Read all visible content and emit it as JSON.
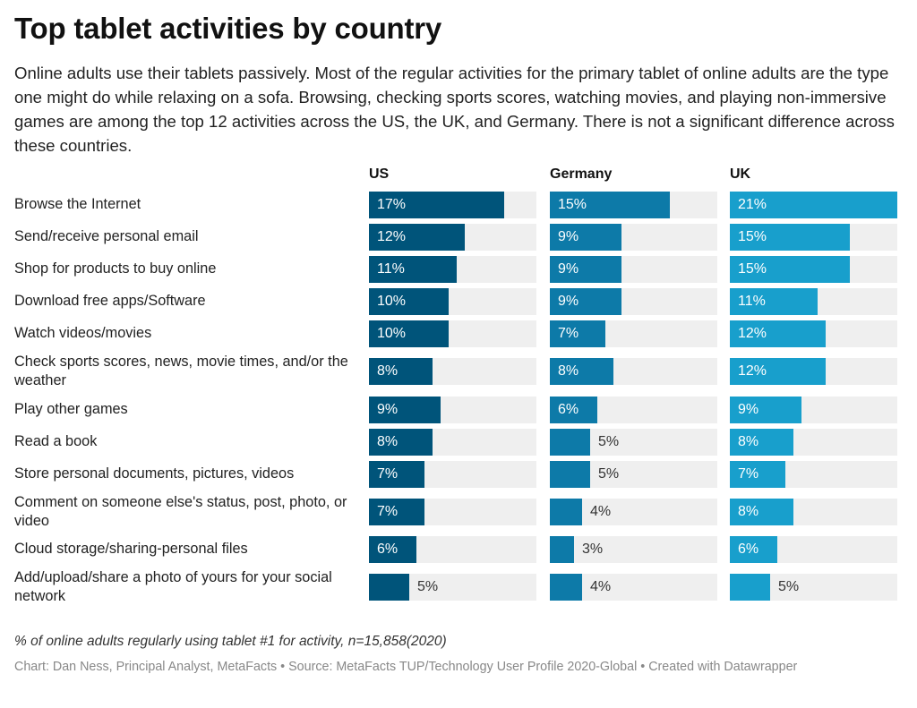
{
  "title": "Top tablet activities by country",
  "description": "Online adults use their tablets passively. Most of the regular activities for the primary tablet of online adults are the type one might do while relaxing on a sofa. Browsing, checking sports scores, watching movies, and playing non-immersive games are among the top 12 activities across the US, the UK, and Germany. There is not a significant difference across these countries.",
  "note": "% of online adults regularly using tablet #1 for activity, n=15,858(2020)",
  "credit": "Chart: Dan Ness, Principal Analyst, MetaFacts • Source: MetaFacts TUP/Technology User Profile 2020-Global • Created with Datawrapper",
  "chart_data": {
    "type": "bar",
    "orientation": "horizontal",
    "value_suffix": "%",
    "xlim": [
      0,
      21
    ],
    "categories": [
      "Browse the Internet",
      "Send/receive personal email",
      "Shop for products to buy online",
      "Download free apps/Software",
      "Watch videos/movies",
      "Check sports scores, news, movie times, and/or the weather",
      "Play other games",
      "Read a book",
      "Store personal documents, pictures, videos",
      "Comment on someone else's status, post, photo, or video",
      "Cloud storage/sharing-personal files",
      "Add/upload/share a photo of yours for your social network"
    ],
    "series": [
      {
        "name": "US",
        "color": "#00547a",
        "values": [
          17,
          12,
          11,
          10,
          10,
          8,
          9,
          8,
          7,
          7,
          6,
          5
        ]
      },
      {
        "name": "Germany",
        "color": "#0d7aa8",
        "values": [
          15,
          9,
          9,
          9,
          7,
          8,
          6,
          5,
          5,
          4,
          3,
          4
        ]
      },
      {
        "name": "UK",
        "color": "#189fcc",
        "values": [
          21,
          15,
          15,
          11,
          12,
          12,
          9,
          8,
          7,
          8,
          6,
          5
        ]
      }
    ]
  }
}
